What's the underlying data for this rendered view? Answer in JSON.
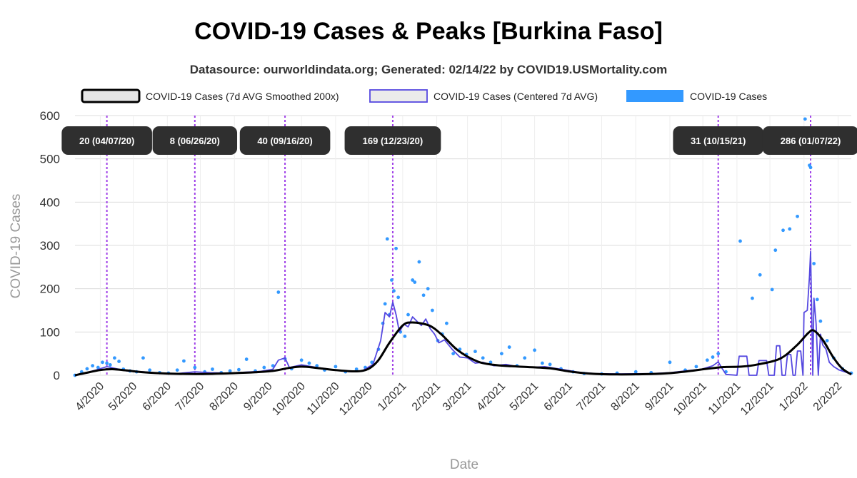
{
  "chart_data": {
    "type": "line",
    "title": "COVID-19 Cases & Peaks [Burkina Faso]",
    "subtitle": "Datasource: ourworldindata.org; Generated: 02/14/22 by COVID19.USMortality.com",
    "xlabel": "Date",
    "ylabel": "COVID-19 Cases",
    "ylim": [
      0,
      600
    ],
    "yticks": [
      0,
      100,
      200,
      300,
      400,
      500,
      600
    ],
    "xticks": [
      "4/2020",
      "5/2020",
      "6/2020",
      "7/2020",
      "8/2020",
      "9/2020",
      "10/2020",
      "11/2020",
      "12/2020",
      "1/2021",
      "2/2021",
      "3/2021",
      "4/2021",
      "5/2021",
      "6/2021",
      "7/2021",
      "8/2021",
      "9/2021",
      "10/2021",
      "11/2021",
      "12/2021",
      "1/2022",
      "2/2022"
    ],
    "xrange": [
      "2020-03-09",
      "2022-02-13"
    ],
    "grid": true,
    "legend_position": "top",
    "legend": [
      {
        "label": "COVID-19 Cases (7d AVG Smoothed 200x)",
        "color": "#000000",
        "fill": "#e6e6e6"
      },
      {
        "label": "COVID-19 Cases (Centered 7d AVG)",
        "color": "#5548e0",
        "fill": "#ebebeb"
      },
      {
        "label": "COVID-19 Cases",
        "color": "#3399ff",
        "fill": "#3399ff"
      }
    ],
    "peaks": [
      {
        "date": "2020-04-07",
        "label": "20 (04/07/20)"
      },
      {
        "date": "2020-06-26",
        "label": "8 (06/26/20)"
      },
      {
        "date": "2020-09-16",
        "label": "40 (09/16/20)"
      },
      {
        "date": "2020-12-23",
        "label": "169 (12/23/20)"
      },
      {
        "date": "2021-10-15",
        "label": "31 (10/15/21)"
      },
      {
        "date": "2022-01-07",
        "label": "286 (01/07/22)"
      }
    ],
    "series": [
      {
        "name": "COVID-19 Cases (7d AVG Smoothed 200x)",
        "color": "#000000",
        "points": [
          [
            "2020-03-09",
            0
          ],
          [
            "2020-03-20",
            6
          ],
          [
            "2020-04-01",
            12
          ],
          [
            "2020-04-12",
            14
          ],
          [
            "2020-04-25",
            11
          ],
          [
            "2020-05-10",
            7
          ],
          [
            "2020-06-01",
            4
          ],
          [
            "2020-07-01",
            3
          ],
          [
            "2020-08-01",
            5
          ],
          [
            "2020-08-20",
            7
          ],
          [
            "2020-09-05",
            10
          ],
          [
            "2020-09-20",
            17
          ],
          [
            "2020-10-01",
            20
          ],
          [
            "2020-10-15",
            17
          ],
          [
            "2020-11-01",
            12
          ],
          [
            "2020-11-20",
            9
          ],
          [
            "2020-12-01",
            15
          ],
          [
            "2020-12-10",
            35
          ],
          [
            "2020-12-20",
            75
          ],
          [
            "2021-01-01",
            115
          ],
          [
            "2021-01-10",
            122
          ],
          [
            "2021-01-25",
            115
          ],
          [
            "2021-02-05",
            95
          ],
          [
            "2021-02-20",
            58
          ],
          [
            "2021-03-10",
            32
          ],
          [
            "2021-03-25",
            24
          ],
          [
            "2021-04-10",
            21
          ],
          [
            "2021-04-25",
            19
          ],
          [
            "2021-05-15",
            16
          ],
          [
            "2021-06-01",
            9
          ],
          [
            "2021-06-20",
            4
          ],
          [
            "2021-07-15",
            2
          ],
          [
            "2021-08-15",
            3
          ],
          [
            "2021-09-01",
            5
          ],
          [
            "2021-09-20",
            10
          ],
          [
            "2021-10-05",
            15
          ],
          [
            "2021-10-20",
            19
          ],
          [
            "2021-11-05",
            20
          ],
          [
            "2021-11-20",
            25
          ],
          [
            "2021-12-10",
            38
          ],
          [
            "2021-12-25",
            68
          ],
          [
            "2022-01-05",
            98
          ],
          [
            "2022-01-10",
            103
          ],
          [
            "2022-01-18",
            82
          ],
          [
            "2022-01-28",
            40
          ],
          [
            "2022-02-05",
            15
          ],
          [
            "2022-02-13",
            2
          ]
        ]
      },
      {
        "name": "COVID-19 Cases (Centered 7d AVG)",
        "color": "#5548e0",
        "points": [
          [
            "2020-03-09",
            0
          ],
          [
            "2020-03-18",
            5
          ],
          [
            "2020-03-28",
            12
          ],
          [
            "2020-04-07",
            20
          ],
          [
            "2020-04-14",
            16
          ],
          [
            "2020-04-25",
            10
          ],
          [
            "2020-05-10",
            8
          ],
          [
            "2020-05-25",
            5
          ],
          [
            "2020-06-10",
            4
          ],
          [
            "2020-06-26",
            8
          ],
          [
            "2020-07-10",
            6
          ],
          [
            "2020-07-25",
            5
          ],
          [
            "2020-08-10",
            7
          ],
          [
            "2020-08-25",
            9
          ],
          [
            "2020-09-05",
            14
          ],
          [
            "2020-09-10",
            35
          ],
          [
            "2020-09-16",
            40
          ],
          [
            "2020-09-20",
            18
          ],
          [
            "2020-10-01",
            24
          ],
          [
            "2020-10-15",
            18
          ],
          [
            "2020-11-01",
            12
          ],
          [
            "2020-11-15",
            8
          ],
          [
            "2020-11-25",
            10
          ],
          [
            "2020-12-05",
            25
          ],
          [
            "2020-12-12",
            80
          ],
          [
            "2020-12-16",
            145
          ],
          [
            "2020-12-20",
            135
          ],
          [
            "2020-12-23",
            169
          ],
          [
            "2020-12-26",
            140
          ],
          [
            "2020-12-29",
            100
          ],
          [
            "2021-01-02",
            118
          ],
          [
            "2021-01-06",
            112
          ],
          [
            "2021-01-10",
            135
          ],
          [
            "2021-01-14",
            125
          ],
          [
            "2021-01-18",
            115
          ],
          [
            "2021-01-22",
            130
          ],
          [
            "2021-01-26",
            108
          ],
          [
            "2021-01-30",
            95
          ],
          [
            "2021-02-03",
            75
          ],
          [
            "2021-02-08",
            82
          ],
          [
            "2021-02-15",
            60
          ],
          [
            "2021-02-22",
            42
          ],
          [
            "2021-03-01",
            40
          ],
          [
            "2021-03-08",
            28
          ],
          [
            "2021-03-15",
            30
          ],
          [
            "2021-03-25",
            22
          ],
          [
            "2021-04-05",
            25
          ],
          [
            "2021-04-15",
            20
          ],
          [
            "2021-04-28",
            18
          ],
          [
            "2021-05-10",
            20
          ],
          [
            "2021-05-25",
            14
          ],
          [
            "2021-06-10",
            7
          ],
          [
            "2021-06-25",
            4
          ],
          [
            "2021-07-15",
            3
          ],
          [
            "2021-08-15",
            4
          ],
          [
            "2021-09-01",
            6
          ],
          [
            "2021-09-15",
            10
          ],
          [
            "2021-09-30",
            14
          ],
          [
            "2021-10-10",
            22
          ],
          [
            "2021-10-15",
            31
          ],
          [
            "2021-10-18",
            18
          ],
          [
            "2021-10-22",
            2
          ],
          [
            "2021-11-01",
            0
          ],
          [
            "2021-11-03",
            44
          ],
          [
            "2021-11-10",
            44
          ],
          [
            "2021-11-12",
            0
          ],
          [
            "2021-11-19",
            0
          ],
          [
            "2021-11-21",
            34
          ],
          [
            "2021-11-28",
            34
          ],
          [
            "2021-11-30",
            0
          ],
          [
            "2021-12-05",
            0
          ],
          [
            "2021-12-07",
            68
          ],
          [
            "2021-12-10",
            68
          ],
          [
            "2021-12-12",
            0
          ],
          [
            "2021-12-15",
            0
          ],
          [
            "2021-12-17",
            48
          ],
          [
            "2021-12-20",
            48
          ],
          [
            "2021-12-22",
            0
          ],
          [
            "2021-12-24",
            0
          ],
          [
            "2021-12-26",
            56
          ],
          [
            "2021-12-29",
            56
          ],
          [
            "2021-12-31",
            0
          ],
          [
            "2022-01-01",
            145
          ],
          [
            "2022-01-04",
            150
          ],
          [
            "2022-01-06",
            230
          ],
          [
            "2022-01-07",
            286
          ],
          [
            "2022-01-09",
            0
          ],
          [
            "2022-01-10",
            178
          ],
          [
            "2022-01-12",
            120
          ],
          [
            "2022-01-14",
            0
          ],
          [
            "2022-01-16",
            95
          ],
          [
            "2022-01-18",
            70
          ],
          [
            "2022-01-21",
            60
          ],
          [
            "2022-01-24",
            30
          ],
          [
            "2022-01-28",
            20
          ],
          [
            "2022-02-02",
            12
          ],
          [
            "2022-02-07",
            8
          ],
          [
            "2022-02-13",
            2
          ]
        ]
      },
      {
        "name": "COVID-19 Cases",
        "color": "#3399ff",
        "points": [
          [
            "2020-03-09",
            0
          ],
          [
            "2020-03-15",
            8
          ],
          [
            "2020-03-20",
            15
          ],
          [
            "2020-03-25",
            22
          ],
          [
            "2020-03-30",
            18
          ],
          [
            "2020-04-03",
            30
          ],
          [
            "2020-04-07",
            28
          ],
          [
            "2020-04-10",
            24
          ],
          [
            "2020-04-14",
            40
          ],
          [
            "2020-04-18",
            32
          ],
          [
            "2020-04-22",
            14
          ],
          [
            "2020-04-28",
            10
          ],
          [
            "2020-05-04",
            8
          ],
          [
            "2020-05-10",
            40
          ],
          [
            "2020-05-16",
            12
          ],
          [
            "2020-05-25",
            6
          ],
          [
            "2020-06-02",
            5
          ],
          [
            "2020-06-10",
            12
          ],
          [
            "2020-06-16",
            33
          ],
          [
            "2020-06-26",
            18
          ],
          [
            "2020-07-05",
            8
          ],
          [
            "2020-07-12",
            14
          ],
          [
            "2020-07-20",
            6
          ],
          [
            "2020-07-28",
            10
          ],
          [
            "2020-08-05",
            13
          ],
          [
            "2020-08-12",
            37
          ],
          [
            "2020-08-20",
            10
          ],
          [
            "2020-08-28",
            18
          ],
          [
            "2020-09-05",
            22
          ],
          [
            "2020-09-10",
            192
          ],
          [
            "2020-09-16",
            38
          ],
          [
            "2020-09-22",
            15
          ],
          [
            "2020-10-01",
            35
          ],
          [
            "2020-10-08",
            28
          ],
          [
            "2020-10-15",
            22
          ],
          [
            "2020-10-22",
            12
          ],
          [
            "2020-11-01",
            20
          ],
          [
            "2020-11-10",
            8
          ],
          [
            "2020-11-20",
            14
          ],
          [
            "2020-11-28",
            18
          ],
          [
            "2020-12-04",
            30
          ],
          [
            "2020-12-10",
            60
          ],
          [
            "2020-12-14",
            120
          ],
          [
            "2020-12-16",
            165
          ],
          [
            "2020-12-18",
            315
          ],
          [
            "2020-12-20",
            140
          ],
          [
            "2020-12-22",
            220
          ],
          [
            "2020-12-24",
            195
          ],
          [
            "2020-12-26",
            293
          ],
          [
            "2020-12-28",
            180
          ],
          [
            "2020-12-30",
            100
          ],
          [
            "2021-01-03",
            90
          ],
          [
            "2021-01-06",
            140
          ],
          [
            "2021-01-10",
            220
          ],
          [
            "2021-01-12",
            215
          ],
          [
            "2021-01-16",
            262
          ],
          [
            "2021-01-20",
            185
          ],
          [
            "2021-01-24",
            200
          ],
          [
            "2021-01-28",
            150
          ],
          [
            "2021-02-02",
            80
          ],
          [
            "2021-02-06",
            95
          ],
          [
            "2021-02-10",
            120
          ],
          [
            "2021-02-16",
            50
          ],
          [
            "2021-02-22",
            60
          ],
          [
            "2021-02-28",
            48
          ],
          [
            "2021-03-08",
            55
          ],
          [
            "2021-03-15",
            40
          ],
          [
            "2021-03-22",
            30
          ],
          [
            "2021-04-01",
            50
          ],
          [
            "2021-04-08",
            65
          ],
          [
            "2021-04-15",
            22
          ],
          [
            "2021-04-22",
            40
          ],
          [
            "2021-05-01",
            58
          ],
          [
            "2021-05-08",
            28
          ],
          [
            "2021-05-15",
            25
          ],
          [
            "2021-05-25",
            15
          ],
          [
            "2021-06-05",
            8
          ],
          [
            "2021-06-15",
            4
          ],
          [
            "2021-07-01",
            3
          ],
          [
            "2021-07-15",
            5
          ],
          [
            "2021-08-01",
            8
          ],
          [
            "2021-08-15",
            6
          ],
          [
            "2021-09-01",
            30
          ],
          [
            "2021-09-15",
            12
          ],
          [
            "2021-09-25",
            20
          ],
          [
            "2021-10-05",
            35
          ],
          [
            "2021-10-10",
            42
          ],
          [
            "2021-10-15",
            50
          ],
          [
            "2021-10-22",
            8
          ],
          [
            "2021-11-04",
            310
          ],
          [
            "2021-11-15",
            178
          ],
          [
            "2021-11-22",
            232
          ],
          [
            "2021-12-03",
            198
          ],
          [
            "2021-12-06",
            289
          ],
          [
            "2021-12-13",
            335
          ],
          [
            "2021-12-19",
            338
          ],
          [
            "2021-12-26",
            367
          ],
          [
            "2022-01-02",
            592
          ],
          [
            "2022-01-06",
            485
          ],
          [
            "2022-01-07",
            480
          ],
          [
            "2022-01-10",
            258
          ],
          [
            "2022-01-13",
            175
          ],
          [
            "2022-01-16",
            125
          ],
          [
            "2022-01-22",
            80
          ],
          [
            "2022-01-28",
            40
          ],
          [
            "2022-02-05",
            15
          ],
          [
            "2022-02-13",
            5
          ]
        ]
      }
    ]
  }
}
